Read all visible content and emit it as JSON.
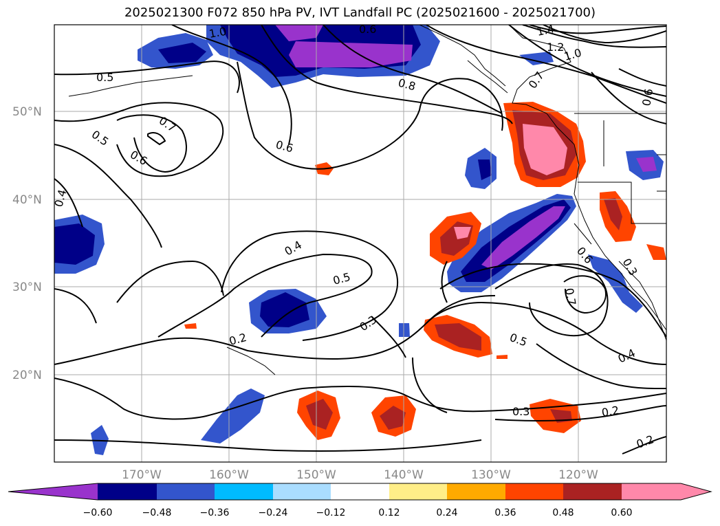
{
  "title": "2025021300 F072 850 hPa PV, IVT Landfall PC (2025021600 - 2025021700)",
  "lat_labels": [
    "50°N",
    "40°N",
    "30°N",
    "20°N"
  ],
  "lon_labels": [
    "170°W",
    "160°W",
    "150°W",
    "140°W",
    "130°W",
    "120°W"
  ],
  "contour_labels": [
    "0.5",
    "0.5",
    "0.7",
    "0.6",
    "1.0",
    "0.6",
    "0.8",
    "0.6",
    "1.4",
    "1.2",
    "1.0",
    "0.7",
    "0.6",
    "0.4",
    "0.4",
    "0.5",
    "0.3",
    "0.2",
    "0.5",
    "0.6",
    "0.7",
    "0.4",
    "0.3",
    "0.2",
    "0.2",
    "0.3"
  ],
  "colorbar": {
    "ticks": [
      "−0.60",
      "−0.48",
      "−0.36",
      "−0.24",
      "−0.12",
      "0.12",
      "0.24",
      "0.36",
      "0.48",
      "0.60"
    ],
    "colors": [
      "#9933cc",
      "#000088",
      "#3355cc",
      "#00bbff",
      "#aaddff",
      "#ffffff",
      "#ffee88",
      "#ffaa00",
      "#ff4400",
      "#aa2222",
      "#ff88aa"
    ]
  },
  "colors": {
    "purple": "#9933cc",
    "navy": "#000088",
    "blue": "#3355cc",
    "cyan": "#00bbff",
    "lightblue": "#aaddff",
    "yellow": "#ffee88",
    "orange": "#ffaa00",
    "redorange": "#ff4400",
    "darkred": "#aa2222",
    "pink": "#ff88aa"
  }
}
